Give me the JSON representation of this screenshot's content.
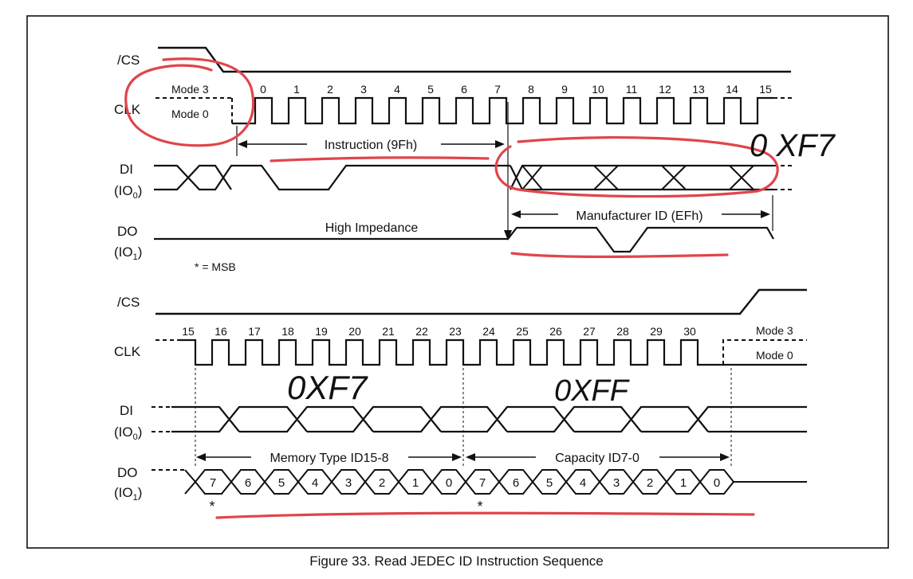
{
  "figure": {
    "caption": "Figure 33. Read JEDEC ID Instruction Sequence",
    "msb_note": "* = MSB",
    "top": {
      "cs_label": "/CS",
      "clk_label": "CLK",
      "mode3": "Mode 3",
      "mode0": "Mode 0",
      "clk_numbers": [
        "0",
        "1",
        "2",
        "3",
        "4",
        "5",
        "6",
        "7",
        "8",
        "9",
        "10",
        "11",
        "12",
        "13",
        "14",
        "15"
      ],
      "di_label": "DI",
      "di_sub": "(IO",
      "di_sub_index": "0",
      "do_label": "DO",
      "do_sub": "(IO",
      "do_sub_index": "1",
      "close_paren": ")",
      "instruction": "Instruction (9Fh)",
      "high_impedance": "High Impedance",
      "manufacturer": "Manufacturer ID (EFh)"
    },
    "bottom": {
      "cs_label": "/CS",
      "clk_label": "CLK",
      "mode3": "Mode 3",
      "mode0": "Mode 0",
      "clk_numbers": [
        "15",
        "16",
        "17",
        "18",
        "19",
        "20",
        "21",
        "22",
        "23",
        "24",
        "25",
        "26",
        "27",
        "28",
        "29",
        "30"
      ],
      "di_label": "DI",
      "di_sub": "(IO",
      "di_sub_index": "0",
      "do_label": "DO",
      "do_sub": "(IO",
      "do_sub_index": "1",
      "close_paren": ")",
      "memory_type": "Memory Type ID15-8",
      "capacity": "Capacity ID7-0",
      "do_bits": [
        "7",
        "6",
        "5",
        "4",
        "3",
        "2",
        "1",
        "0",
        "7",
        "6",
        "5",
        "4",
        "3",
        "2",
        "1",
        "0"
      ],
      "msb_marks": [
        "*",
        "*"
      ]
    },
    "annotations": {
      "note_top": "0 XF7",
      "note_mid": "0XF7",
      "note_right": "0XFF",
      "ink_color": "#e0454b"
    }
  }
}
